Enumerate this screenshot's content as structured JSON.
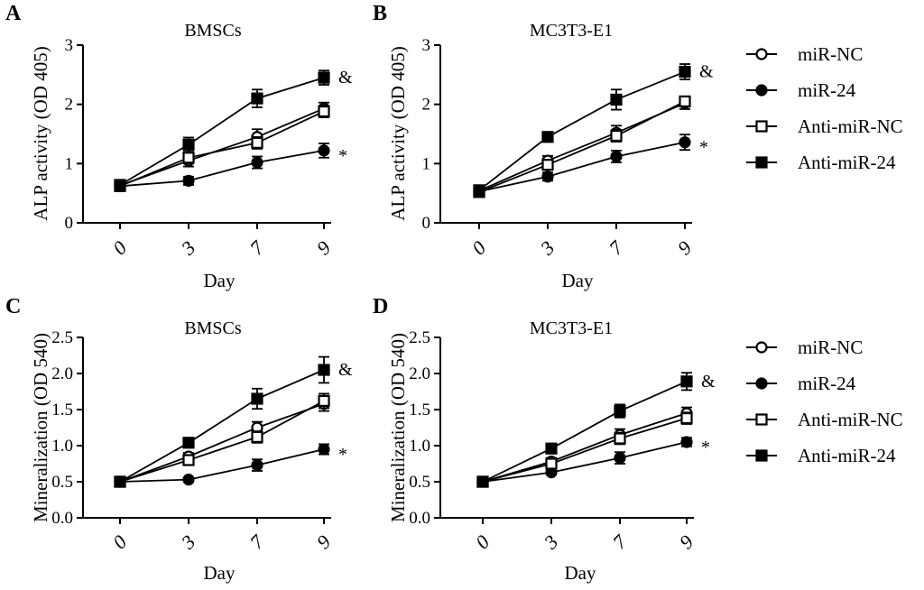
{
  "legend": [
    {
      "label": "miR-NC",
      "marker": "open-circle"
    },
    {
      "label": "miR-24",
      "marker": "filled-circle"
    },
    {
      "label": "Anti-miR-NC",
      "marker": "open-square"
    },
    {
      "label": "Anti-miR-24",
      "marker": "filled-square"
    }
  ],
  "colors": {
    "ink": "#000000",
    "background": "#ffffff"
  },
  "chart_data": [
    {
      "panel": "A",
      "type": "line",
      "title": "BMSCs",
      "xlabel": "Day",
      "ylabel": "ALP activity (OD 405)",
      "categories": [
        "0",
        "3",
        "7",
        "9"
      ],
      "ylim": [
        0,
        3
      ],
      "yticks": [
        0,
        1,
        2,
        3
      ],
      "ytick_labels": [
        "0",
        "1",
        "2",
        "3"
      ],
      "series": [
        {
          "name": "miR-NC",
          "marker": "open-circle",
          "values": [
            0.63,
            1.05,
            1.45,
            1.93
          ],
          "errors": [
            0.05,
            0.1,
            0.13,
            0.1
          ]
        },
        {
          "name": "miR-24",
          "marker": "filled-circle",
          "values": [
            0.62,
            0.71,
            1.02,
            1.22
          ],
          "errors": [
            0.04,
            0.07,
            0.1,
            0.12
          ]
        },
        {
          "name": "Anti-miR-NC",
          "marker": "open-square",
          "values": [
            0.62,
            1.1,
            1.35,
            1.88
          ],
          "errors": [
            0.05,
            0.1,
            0.1,
            0.1
          ]
        },
        {
          "name": "Anti-miR-24",
          "marker": "filled-square",
          "values": [
            0.64,
            1.32,
            2.1,
            2.45
          ],
          "errors": [
            0.05,
            0.12,
            0.15,
            0.12
          ]
        }
      ],
      "annotations": [
        {
          "text": "&",
          "series": "Anti-miR-24"
        },
        {
          "text": "*",
          "series": "miR-24"
        }
      ]
    },
    {
      "panel": "B",
      "type": "line",
      "title": "MC3T3-E1",
      "xlabel": "Day",
      "ylabel": "ALP activity (OD 405)",
      "categories": [
        "0",
        "3",
        "7",
        "9"
      ],
      "ylim": [
        0,
        3
      ],
      "yticks": [
        0,
        1,
        2,
        3
      ],
      "ytick_labels": [
        "0",
        "1",
        "2",
        "3"
      ],
      "series": [
        {
          "name": "miR-NC",
          "marker": "open-circle",
          "values": [
            0.54,
            1.05,
            1.52,
            2.02
          ],
          "errors": [
            0.05,
            0.08,
            0.12,
            0.1
          ]
        },
        {
          "name": "miR-24",
          "marker": "filled-circle",
          "values": [
            0.53,
            0.78,
            1.12,
            1.36
          ],
          "errors": [
            0.04,
            0.07,
            0.1,
            0.13
          ]
        },
        {
          "name": "Anti-miR-NC",
          "marker": "open-square",
          "values": [
            0.52,
            0.98,
            1.47,
            2.05
          ],
          "errors": [
            0.05,
            0.08,
            0.1,
            0.08
          ]
        },
        {
          "name": "Anti-miR-24",
          "marker": "filled-square",
          "values": [
            0.55,
            1.45,
            2.08,
            2.55
          ],
          "errors": [
            0.05,
            0.08,
            0.17,
            0.13
          ]
        }
      ],
      "annotations": [
        {
          "text": "&",
          "series": "Anti-miR-24"
        },
        {
          "text": "*",
          "series": "miR-24"
        }
      ]
    },
    {
      "panel": "C",
      "type": "line",
      "title": "BMSCs",
      "xlabel": "Day",
      "ylabel": "Mineralization (OD 540)",
      "categories": [
        "0",
        "3",
        "7",
        "9"
      ],
      "ylim": [
        0,
        2.5
      ],
      "yticks": [
        0,
        0.5,
        1.0,
        1.5,
        2.0,
        2.5
      ],
      "ytick_labels": [
        "0.0",
        "0.5",
        "1.0",
        "1.5",
        "2.0",
        "2.5"
      ],
      "series": [
        {
          "name": "miR-NC",
          "marker": "open-circle",
          "values": [
            0.5,
            0.85,
            1.25,
            1.58
          ],
          "errors": [
            0.03,
            0.05,
            0.08,
            0.1
          ]
        },
        {
          "name": "miR-24",
          "marker": "filled-circle",
          "values": [
            0.5,
            0.53,
            0.73,
            0.95
          ],
          "errors": [
            0.03,
            0.03,
            0.08,
            0.07
          ]
        },
        {
          "name": "Anti-miR-NC",
          "marker": "open-square",
          "values": [
            0.5,
            0.8,
            1.12,
            1.62
          ],
          "errors": [
            0.03,
            0.05,
            0.08,
            0.1
          ]
        },
        {
          "name": "Anti-miR-24",
          "marker": "filled-square",
          "values": [
            0.5,
            1.04,
            1.65,
            2.05
          ],
          "errors": [
            0.03,
            0.04,
            0.14,
            0.18
          ]
        }
      ],
      "annotations": [
        {
          "text": "&",
          "series": "Anti-miR-24"
        },
        {
          "text": "*",
          "series": "miR-24"
        }
      ]
    },
    {
      "panel": "D",
      "type": "line",
      "title": "MC3T3-E1",
      "xlabel": "Day",
      "ylabel": "Mineralization (OD 540)",
      "categories": [
        "0",
        "3",
        "7",
        "9"
      ],
      "ylim": [
        0,
        2.5
      ],
      "yticks": [
        0,
        0.5,
        1.0,
        1.5,
        2.0,
        2.5
      ],
      "ytick_labels": [
        "0.0",
        "0.5",
        "1.0",
        "1.5",
        "2.0",
        "2.5"
      ],
      "series": [
        {
          "name": "miR-NC",
          "marker": "open-circle",
          "values": [
            0.5,
            0.78,
            1.15,
            1.45
          ],
          "errors": [
            0.03,
            0.05,
            0.08,
            0.08
          ]
        },
        {
          "name": "miR-24",
          "marker": "filled-circle",
          "values": [
            0.5,
            0.63,
            0.83,
            1.05
          ],
          "errors": [
            0.03,
            0.03,
            0.08,
            0.06
          ]
        },
        {
          "name": "Anti-miR-NC",
          "marker": "open-square",
          "values": [
            0.5,
            0.75,
            1.1,
            1.38
          ],
          "errors": [
            0.03,
            0.05,
            0.08,
            0.08
          ]
        },
        {
          "name": "Anti-miR-24",
          "marker": "filled-square",
          "values": [
            0.5,
            0.96,
            1.48,
            1.89
          ],
          "errors": [
            0.03,
            0.04,
            0.09,
            0.12
          ]
        }
      ],
      "annotations": [
        {
          "text": "&",
          "series": "Anti-miR-24"
        },
        {
          "text": "*",
          "series": "miR-24"
        }
      ]
    }
  ]
}
